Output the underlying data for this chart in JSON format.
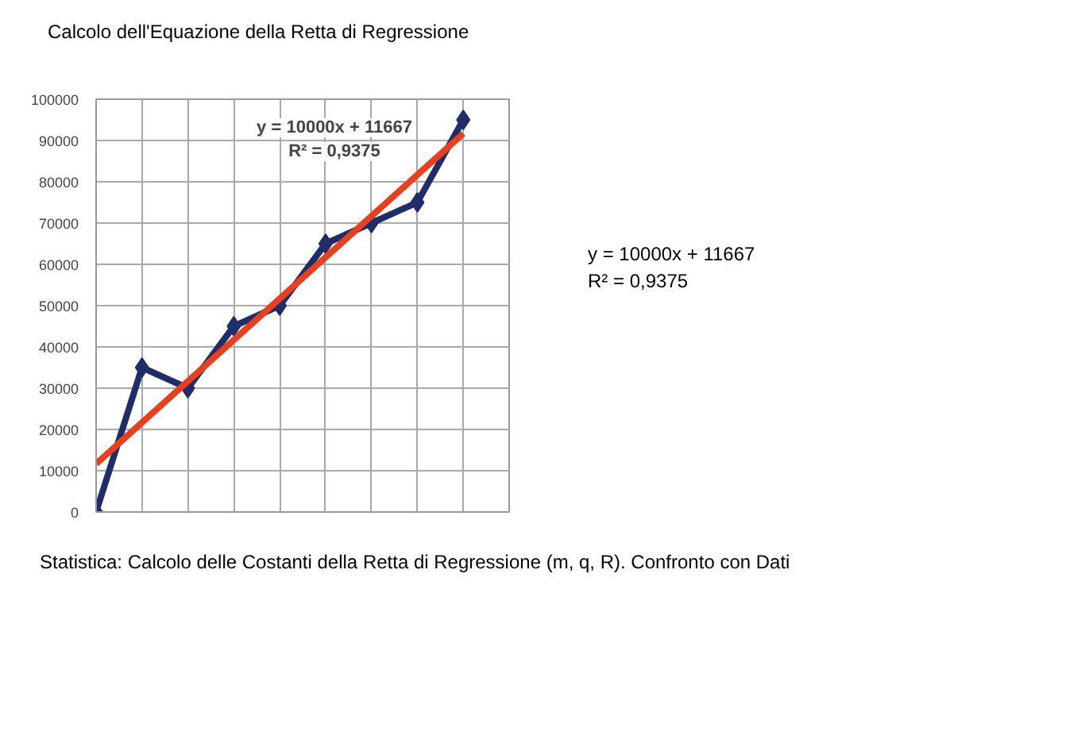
{
  "chart_data": {
    "type": "line",
    "title": "Calcolo dell'Equazione della Retta di Regressione",
    "categories": [
      null,
      null,
      null,
      null,
      null,
      null,
      null,
      null,
      null
    ],
    "series": [
      {
        "color": "#1f2d6b",
        "marker": "diamond",
        "values": [
          0,
          35000,
          30000,
          45000,
          50000,
          65000,
          70000,
          75000,
          95000
        ]
      },
      {
        "color": "#e8401c",
        "marker": "none",
        "values": [
          11667,
          21667,
          31667,
          41667,
          51667,
          61667,
          71667,
          81667,
          91667
        ]
      }
    ],
    "ylim": [
      0,
      100000
    ],
    "yticks": [
      0,
      10000,
      20000,
      30000,
      40000,
      50000,
      60000,
      70000,
      80000,
      90000,
      100000
    ],
    "grid": true,
    "tick_labels": "y",
    "line_style": "solid",
    "annotations": [
      "y = 10000x + 11667",
      "R² = 0,9375",
      "y = 10000x + 11667",
      "R² = 0,9375",
      "Statistica: Calcolo delle Costanti della Retta di Regressione (m, q, R). Confronto con Dati"
    ]
  }
}
